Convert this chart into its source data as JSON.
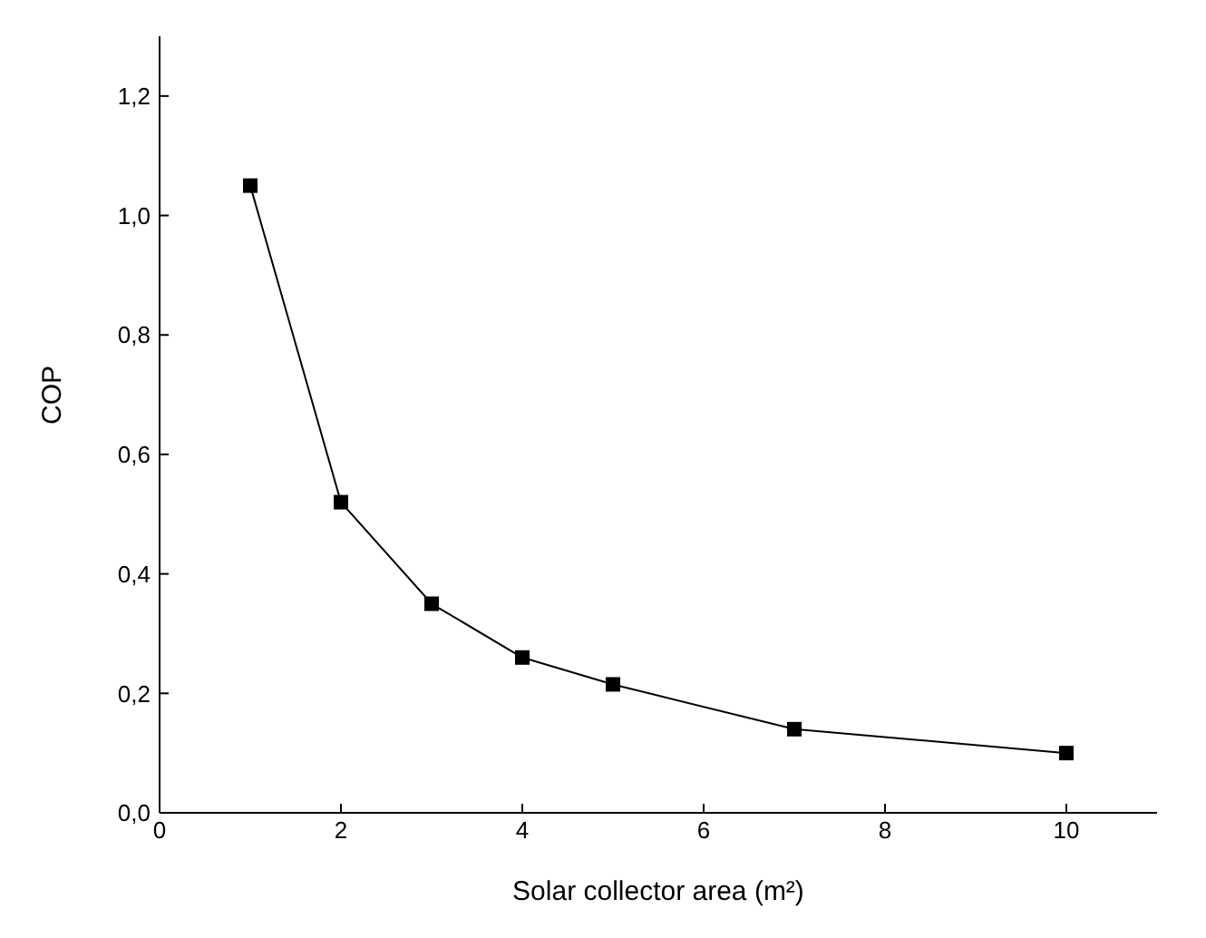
{
  "chart_data": {
    "type": "line",
    "xlabel": "Solar collector area (m²)",
    "ylabel": "COP",
    "x": [
      1,
      2,
      3,
      4,
      5,
      7,
      10
    ],
    "series": [
      {
        "color": "#000000",
        "values": [
          1.05,
          0.52,
          0.35,
          0.26,
          0.215,
          0.14,
          0.1
        ]
      }
    ],
    "xlim": [
      0,
      11
    ],
    "xticks": [
      0,
      2,
      4,
      6,
      8,
      10
    ],
    "ylim": [
      0,
      1.3
    ],
    "yticks": [
      {
        "value": 0,
        "label": "0,0"
      },
      {
        "value": 0.2,
        "label": "0,2"
      },
      {
        "value": 0.4,
        "label": "0,4"
      },
      {
        "value": 0.6,
        "label": "0,6"
      },
      {
        "value": 0.8,
        "label": "0,8"
      },
      {
        "value": 1.0,
        "label": "1,0"
      },
      {
        "value": 1.2,
        "label": "1,2"
      }
    ],
    "grid": false,
    "legend": false,
    "marker": "square",
    "line_style": "solid"
  }
}
